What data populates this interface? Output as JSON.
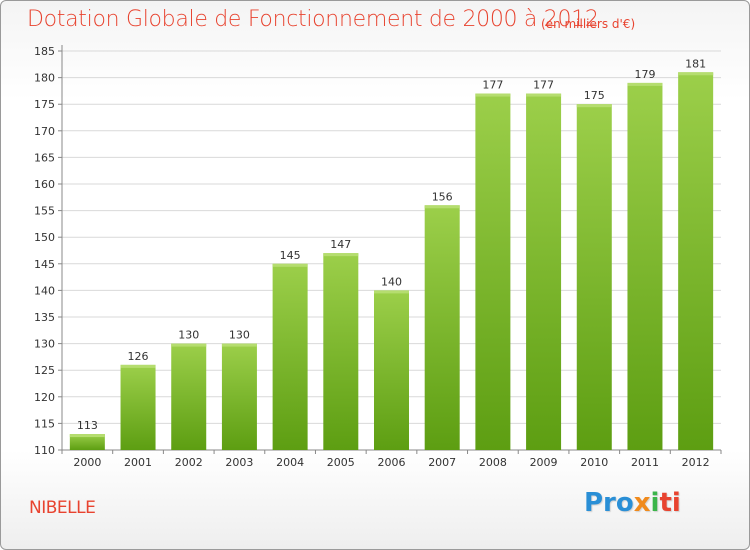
{
  "header": {
    "title": "Dotation Globale de Fonctionnement de 2000 à 2012",
    "subtitle": "(en milliers d'€)"
  },
  "footer": {
    "commune": "NIBELLE",
    "logo": [
      "Pro",
      "x",
      "i",
      "ti"
    ]
  },
  "colors": {
    "title": "#e8432f",
    "bar_top": "#9ccf4a",
    "bar_bottom": "#5d9e12",
    "grid": "#d9d9d9"
  },
  "chart_data": {
    "type": "bar",
    "title": "Dotation Globale de Fonctionnement de 2000 à 2012",
    "subtitle": "(en milliers d'€)",
    "xlabel": "",
    "ylabel": "",
    "categories": [
      "2000",
      "2001",
      "2002",
      "2003",
      "2004",
      "2005",
      "2006",
      "2007",
      "2008",
      "2009",
      "2010",
      "2011",
      "2012"
    ],
    "values": [
      113,
      126,
      130,
      130,
      145,
      147,
      140,
      156,
      177,
      177,
      175,
      179,
      181
    ],
    "data_labels": [
      "113",
      "126",
      "130",
      "130",
      "145",
      "147",
      "140",
      "156",
      "177",
      "177",
      "175",
      "179",
      "181"
    ],
    "ylim": [
      110,
      185
    ],
    "yticks": [
      "110",
      "115",
      "120",
      "125",
      "130",
      "135",
      "140",
      "145",
      "150",
      "155",
      "160",
      "165",
      "170",
      "175",
      "180",
      "185"
    ],
    "grid": true,
    "legend": "none"
  }
}
